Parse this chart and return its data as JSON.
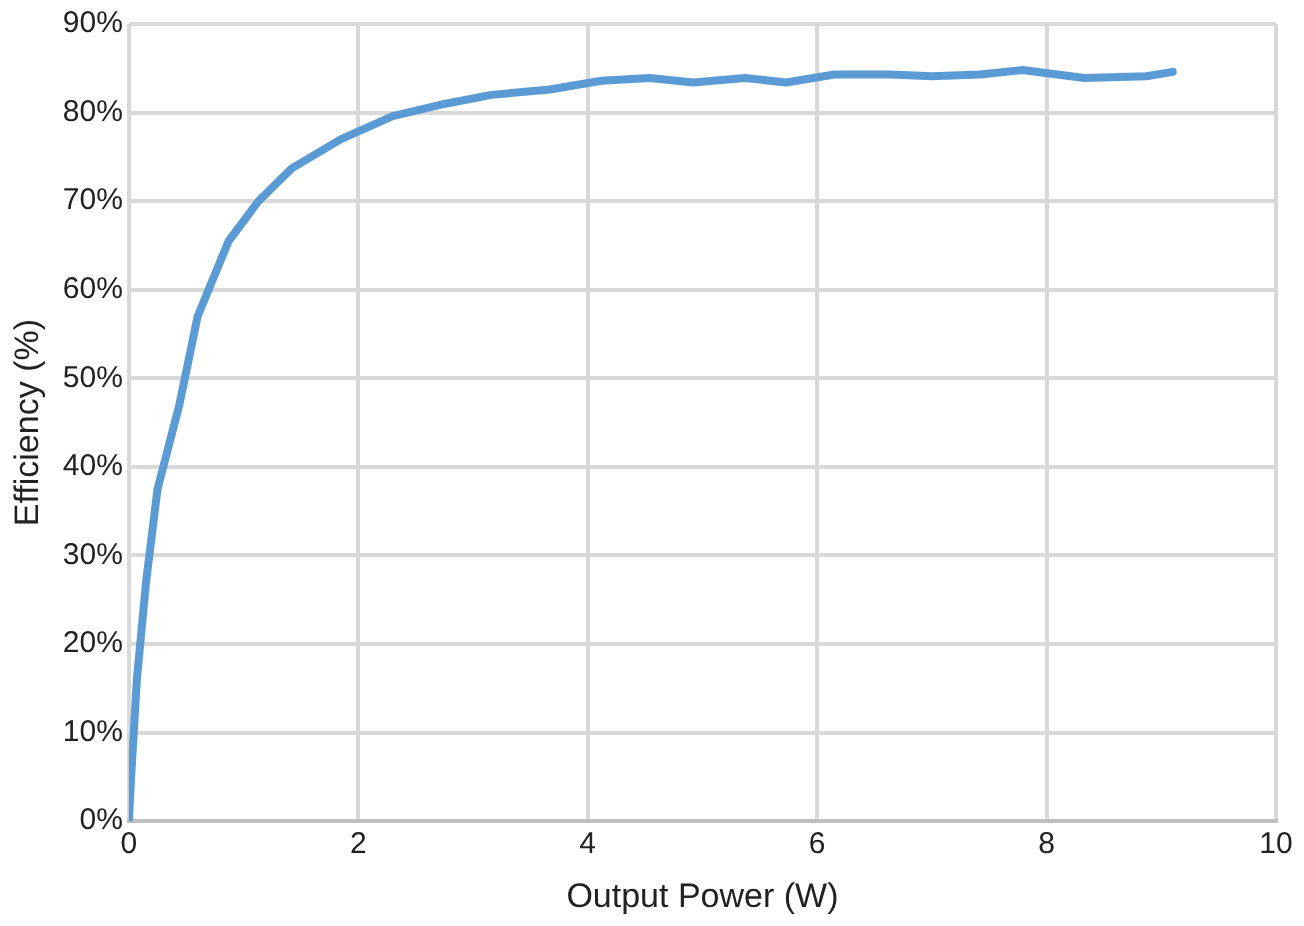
{
  "chart_data": {
    "type": "line",
    "xlabel": "Output Power (W)",
    "ylabel": "Efficiency (%)",
    "x": [
      0,
      0.02,
      0.07,
      0.15,
      0.25,
      0.44,
      0.6,
      0.87,
      1.13,
      1.42,
      1.85,
      2.3,
      2.76,
      3.16,
      3.67,
      4.12,
      4.54,
      4.92,
      5.37,
      5.73,
      6.15,
      6.64,
      7.0,
      7.42,
      7.79,
      8.33,
      8.87,
      9.1
    ],
    "series": [
      {
        "color": "#5b9bd5",
        "values": [
          0,
          5,
          16,
          27,
          37.5,
          47,
          57,
          65.5,
          70,
          73.7,
          77,
          79.6,
          81,
          82,
          82.6,
          83.6,
          83.9,
          83.4,
          83.9,
          83.4,
          84.3,
          84.3,
          84.1,
          84.3,
          84.8,
          83.9,
          84.1,
          84.6
        ]
      }
    ],
    "xlim": [
      0,
      10
    ],
    "xticks": [
      0,
      2,
      4,
      6,
      8,
      10
    ],
    "ylim": [
      0,
      90
    ],
    "yticks": [
      {
        "value": 0,
        "label": "0%"
      },
      {
        "value": 10,
        "label": "10%"
      },
      {
        "value": 20,
        "label": "20%"
      },
      {
        "value": 30,
        "label": "30%"
      },
      {
        "value": 40,
        "label": "40%"
      },
      {
        "value": 50,
        "label": "50%"
      },
      {
        "value": 60,
        "label": "60%"
      },
      {
        "value": 70,
        "label": "70%"
      },
      {
        "value": 80,
        "label": "80%"
      },
      {
        "value": 90,
        "label": "90%"
      }
    ],
    "grid": true,
    "legend": false,
    "marker": "none",
    "line_style": "solid"
  }
}
